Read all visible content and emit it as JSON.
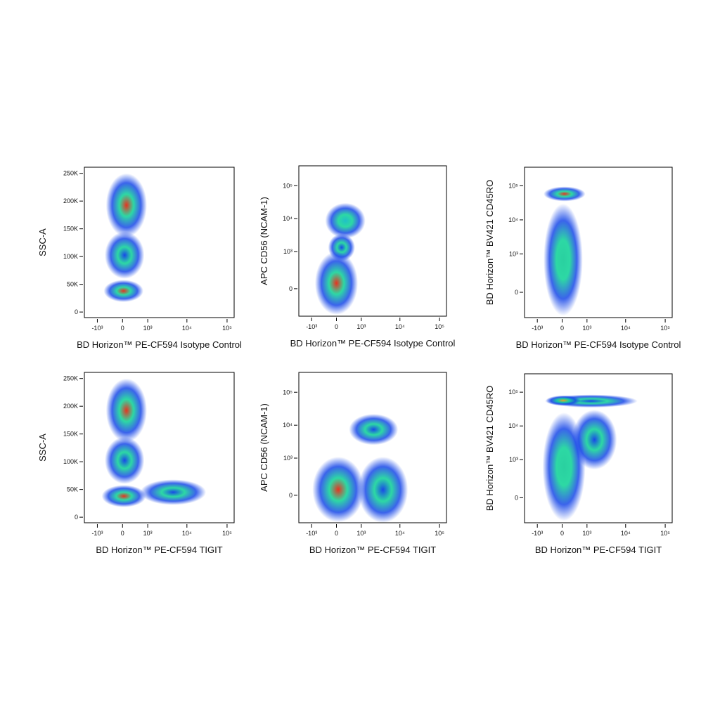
{
  "chart_data": [
    {
      "type": "density",
      "xlabel": "BD Horizon™ PE-CF594 Isotype Control",
      "ylabel": "SSC-A",
      "xscale": "biexponential",
      "yscale": "linear",
      "xlim": [
        -2200,
        150000
      ],
      "ylim": [
        -10000,
        261000
      ],
      "xticks": [
        {
          "value": -1000,
          "label": "-10³"
        },
        0,
        {
          "value": 1000,
          "label": "10³"
        },
        {
          "value": 10000,
          "label": "10⁴"
        },
        {
          "value": 100000,
          "label": "10⁵"
        }
      ],
      "yticks": [
        0,
        {
          "value": 50000,
          "label": "50K"
        },
        {
          "value": 100000,
          "label": "100K"
        },
        {
          "value": 150000,
          "label": "150K"
        },
        {
          "value": 200000,
          "label": "200K"
        },
        {
          "value": 250000,
          "label": "250K"
        }
      ],
      "populations": [
        {
          "x": [
            -600,
            800
          ],
          "y": [
            60000,
            145000
          ],
          "color": "#1848e8"
        },
        {
          "x": [
            -550,
            950
          ],
          "y": [
            135000,
            250000
          ],
          "color": "#e8321e"
        },
        {
          "x": [
            -650,
            750
          ],
          "y": [
            18000,
            58000
          ],
          "color": "#e8321e"
        }
      ]
    },
    {
      "type": "density",
      "xlabel": "BD Horizon™ PE-CF594 Isotype Control",
      "ylabel": "APC CD56 (NCAM-1)",
      "xscale": "biexponential",
      "yscale": "biexponential",
      "xlim": [
        -2200,
        150000
      ],
      "ylim": [
        -500,
        400000
      ],
      "xticks": [
        {
          "value": -1000,
          "label": "-10³"
        },
        0,
        {
          "value": 1000,
          "label": "10³"
        },
        {
          "value": 10000,
          "label": "10⁴"
        },
        {
          "value": 100000,
          "label": "10⁵"
        }
      ],
      "yticks": [
        0,
        {
          "value": 1000,
          "label": "10³"
        },
        {
          "value": 10000,
          "label": "10⁴"
        },
        {
          "value": 100000,
          "label": "10⁵"
        }
      ],
      "populations": [
        {
          "x": [
            -250,
            650
          ],
          "y": [
            500,
            3500
          ],
          "color": "#1848e8"
        },
        {
          "x": [
            -350,
            1300
          ],
          "y": [
            2500,
            30000
          ],
          "color": "#20c0c8"
        },
        {
          "x": [
            -800,
            800
          ],
          "y": [
            -450,
            1000
          ],
          "color": "#e8321e"
        }
      ]
    },
    {
      "type": "density",
      "xlabel": "BD Horizon™ PE-CF594 Isotype Control",
      "ylabel": "BD Horizon™ BV421 CD45RO",
      "xscale": "biexponential",
      "yscale": "biexponential",
      "xlim": [
        -2200,
        150000
      ],
      "ylim": [
        -400,
        350000
      ],
      "xticks": [
        {
          "value": -1000,
          "label": "-10³"
        },
        0,
        {
          "value": 1000,
          "label": "10³"
        },
        {
          "value": 10000,
          "label": "10⁴"
        },
        {
          "value": 100000,
          "label": "10⁵"
        }
      ],
      "yticks": [
        0,
        {
          "value": 1000,
          "label": "10³"
        },
        {
          "value": 10000,
          "label": "10⁴"
        },
        {
          "value": 100000,
          "label": "10⁵"
        }
      ],
      "populations": [
        {
          "x": [
            -650,
            750
          ],
          "y": [
            -350,
            30000
          ],
          "color": "#2ad0a0"
        },
        {
          "x": [
            -650,
            900
          ],
          "y": [
            35000,
            95000
          ],
          "color": "#e8321e"
        }
      ]
    },
    {
      "type": "density",
      "xlabel": "BD Horizon™ PE-CF594 TIGIT",
      "ylabel": "SSC-A",
      "xscale": "biexponential",
      "yscale": "linear",
      "xlim": [
        -2200,
        150000
      ],
      "ylim": [
        -10000,
        261000
      ],
      "xticks": [
        {
          "value": -1000,
          "label": "-10³"
        },
        0,
        {
          "value": 1000,
          "label": "10³"
        },
        {
          "value": 10000,
          "label": "10⁴"
        },
        {
          "value": 100000,
          "label": "10⁵"
        }
      ],
      "yticks": [
        0,
        {
          "value": 50000,
          "label": "50K"
        },
        {
          "value": 100000,
          "label": "100K"
        },
        {
          "value": 150000,
          "label": "150K"
        },
        {
          "value": 200000,
          "label": "200K"
        },
        {
          "value": 250000,
          "label": "250K"
        }
      ],
      "populations": [
        {
          "x": [
            600,
            30000
          ],
          "y": [
            22000,
            68000
          ],
          "color": "#1848e8"
        },
        {
          "x": [
            -600,
            800
          ],
          "y": [
            60000,
            145000
          ],
          "color": "#1848e8"
        },
        {
          "x": [
            -550,
            950
          ],
          "y": [
            135000,
            250000
          ],
          "color": "#e8321e"
        },
        {
          "x": [
            -750,
            900
          ],
          "y": [
            18000,
            58000
          ],
          "color": "#e8321e"
        }
      ]
    },
    {
      "type": "density",
      "xlabel": "BD Horizon™ PE-CF594 TIGIT",
      "ylabel": "APC CD56 (NCAM-1)",
      "xscale": "biexponential",
      "yscale": "biexponential",
      "xlim": [
        -2200,
        150000
      ],
      "ylim": [
        -500,
        400000
      ],
      "xticks": [
        {
          "value": -1000,
          "label": "-10³"
        },
        0,
        {
          "value": 1000,
          "label": "10³"
        },
        {
          "value": 10000,
          "label": "10⁴"
        },
        {
          "value": 100000,
          "label": "10⁵"
        }
      ],
      "yticks": [
        0,
        {
          "value": 1000,
          "label": "10³"
        },
        {
          "value": 10000,
          "label": "10⁴"
        },
        {
          "value": 100000,
          "label": "10⁵"
        }
      ],
      "populations": [
        {
          "x": [
            800,
            16000
          ],
          "y": [
            -500,
            1100
          ],
          "color": "#1848e8"
        },
        {
          "x": [
            400,
            9000
          ],
          "y": [
            2500,
            22000
          ],
          "color": "#1848e8"
        },
        {
          "x": [
            -950,
            1200
          ],
          "y": [
            -480,
            1100
          ],
          "color": "#e8321e"
        }
      ]
    },
    {
      "type": "density",
      "xlabel": "BD Horizon™ PE-CF594 TIGIT",
      "ylabel": "BD Horizon™ BV421 CD45RO",
      "xscale": "biexponential",
      "yscale": "biexponential",
      "xlim": [
        -2200,
        150000
      ],
      "ylim": [
        -400,
        350000
      ],
      "xticks": [
        {
          "value": -1000,
          "label": "-10³"
        },
        0,
        {
          "value": 1000,
          "label": "10³"
        },
        {
          "value": 10000,
          "label": "10⁴"
        },
        {
          "value": 100000,
          "label": "10⁵"
        }
      ],
      "yticks": [
        0,
        {
          "value": 1000,
          "label": "10³"
        },
        {
          "value": 10000,
          "label": "10⁴"
        },
        {
          "value": 100000,
          "label": "10⁵"
        }
      ],
      "populations": [
        {
          "x": [
            300,
            6000
          ],
          "y": [
            500,
            30000
          ],
          "color": "#1848e8"
        },
        {
          "x": [
            -600,
            20000
          ],
          "y": [
            35000,
            85000
          ],
          "color": "#1848e8"
        },
        {
          "x": [
            -700,
            900
          ],
          "y": [
            -350,
            25000
          ],
          "color": "#2ad0a0"
        },
        {
          "x": [
            -550,
            650
          ],
          "y": [
            40000,
            80000
          ],
          "color": "#f0a020"
        }
      ]
    }
  ]
}
